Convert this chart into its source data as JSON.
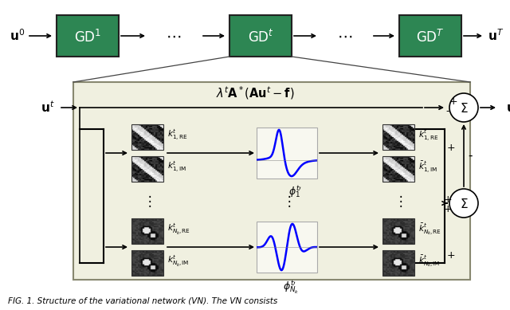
{
  "fig_width": 6.4,
  "fig_height": 3.89,
  "dpi": 100,
  "bg_color": "#ffffff",
  "green_color": "#2d8653",
  "box_bg": "#f0f0e0",
  "caption": "FIG. 1. Structure of the variational network (VN). The VN consists"
}
